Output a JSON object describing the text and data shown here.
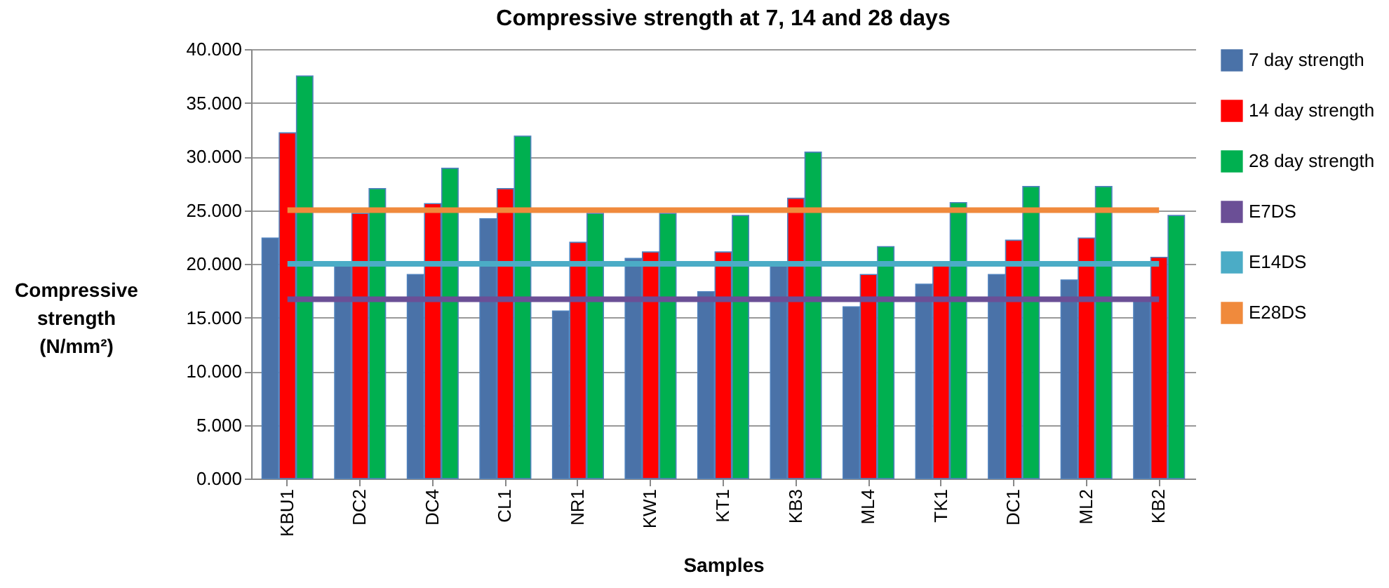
{
  "chart_data": {
    "type": "bar",
    "title": "Compressive strength at 7, 14 and 28 days",
    "xlabel": "Samples",
    "ylabel": "Compressive strength (N/mm²)",
    "categories": [
      "KBU1",
      "DC2",
      "DC4",
      "CL1",
      "NR1",
      "KW1",
      "KT1",
      "KB3",
      "ML4",
      "TK1",
      "DC1",
      "ML2",
      "KB2"
    ],
    "series": [
      {
        "name": "7 day strength",
        "color": "#4a72a8",
        "values": [
          22.4,
          19.8,
          19.0,
          24.2,
          15.6,
          20.5,
          17.4,
          19.8,
          16.0,
          18.1,
          19.0,
          18.5,
          16.5
        ]
      },
      {
        "name": "14 day strength",
        "color": "#ff0000",
        "values": [
          32.2,
          24.7,
          25.6,
          27.0,
          22.0,
          21.1,
          21.1,
          26.1,
          19.0,
          20.2,
          22.2,
          22.4,
          20.6
        ]
      },
      {
        "name": "28 day strength",
        "color": "#00b050",
        "values": [
          37.5,
          27.0,
          28.9,
          31.9,
          24.7,
          24.7,
          24.5,
          30.4,
          21.6,
          25.7,
          27.2,
          27.2,
          24.5
        ]
      },
      {
        "name": "E7DS",
        "type": "line",
        "color": "#6b4f96",
        "values": [
          16.7,
          16.7,
          16.7,
          16.7,
          16.7,
          16.7,
          16.7,
          16.7,
          16.7,
          16.7,
          16.7,
          16.7,
          16.7
        ]
      },
      {
        "name": "E14DS",
        "type": "line",
        "color": "#4bacc6",
        "values": [
          20,
          20,
          20,
          20,
          20,
          20,
          20,
          20,
          20,
          20,
          20,
          20,
          20
        ]
      },
      {
        "name": "E28DS",
        "type": "line",
        "color": "#f08a3c",
        "values": [
          25,
          25,
          25,
          25,
          25,
          25,
          25,
          25,
          25,
          25,
          25,
          25,
          25
        ]
      }
    ],
    "ylim": [
      0,
      40
    ],
    "yticks": [
      {
        "value": 0,
        "label": "0.000"
      },
      {
        "value": 5,
        "label": "5.000"
      },
      {
        "value": 10,
        "label": "10.000"
      },
      {
        "value": 15,
        "label": "15.000"
      },
      {
        "value": 20,
        "label": "20.000"
      },
      {
        "value": 25,
        "label": "25.000"
      },
      {
        "value": 30,
        "label": "30.000"
      },
      {
        "value": 35,
        "label": "35.000"
      },
      {
        "value": 40,
        "label": "40.000"
      }
    ],
    "grid": "y",
    "legend": "right"
  }
}
